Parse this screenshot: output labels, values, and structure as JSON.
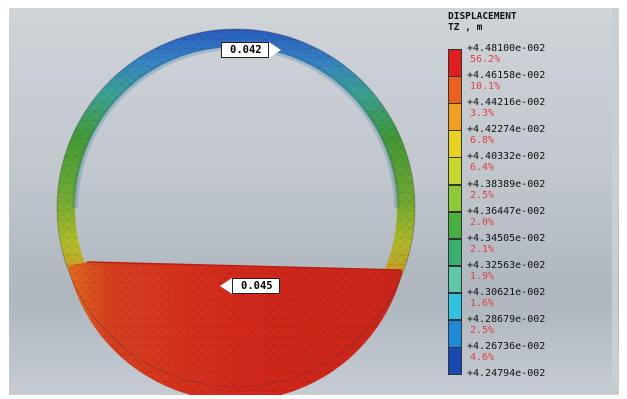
{
  "model_labels": {
    "top_value": "0.042",
    "bottom_value": "0.045"
  },
  "legend": {
    "title_line1": "DISPLACEMENT",
    "title_line2": "TZ , m",
    "ticks": [
      "+4.48100e-002",
      "+4.46158e-002",
      "+4.44216e-002",
      "+4.42274e-002",
      "+4.40332e-002",
      "+4.38389e-002",
      "+4.36447e-002",
      "+4.34505e-002",
      "+4.32563e-002",
      "+4.30621e-002",
      "+4.28679e-002",
      "+4.26736e-002",
      "+4.24794e-002"
    ],
    "percentages": [
      "56.2%",
      "10.1%",
      "3.3%",
      "6.8%",
      "6.4%",
      "2.5%",
      "2.0%",
      "2.1%",
      "1.9%",
      "1.6%",
      "2.5%",
      "4.6%"
    ],
    "colors": [
      "#e02020",
      "#ee6020",
      "#f0a020",
      "#e8d020",
      "#c8d830",
      "#8cc838",
      "#48b040",
      "#38b070",
      "#60c8a8",
      "#30c0e0",
      "#2088d8",
      "#1848b0"
    ]
  },
  "colors": {
    "callout_arrow": "#ffffff",
    "mesh_red": "#d42a1c",
    "mesh_green": "#4aa43c",
    "mesh_blue": "#2458b0"
  }
}
